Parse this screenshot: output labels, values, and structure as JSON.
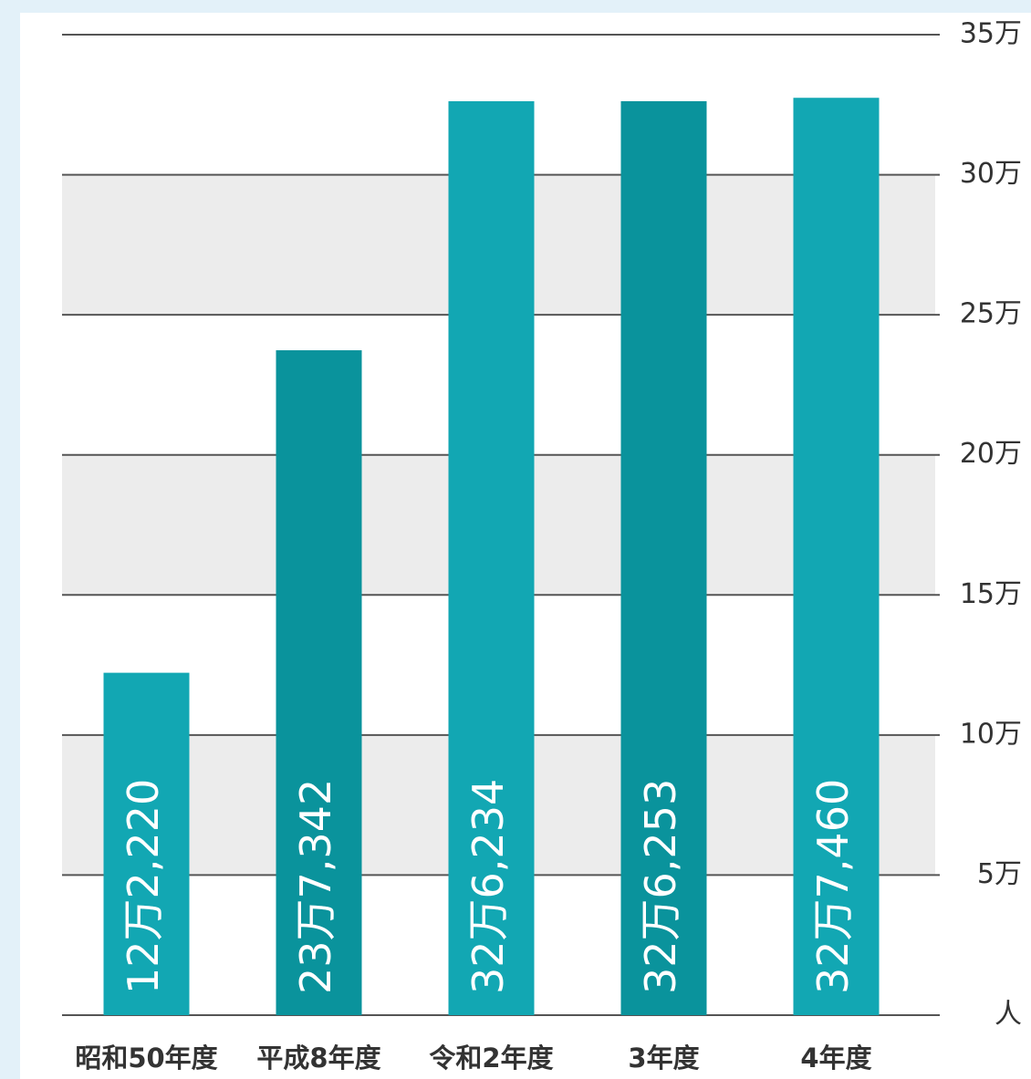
{
  "chart_data": {
    "type": "bar",
    "categories": [
      "昭和50年度",
      "平成8年度",
      "令和2年度",
      "3年度",
      "4年度"
    ],
    "values": [
      122220,
      237342,
      326234,
      326253,
      327460
    ],
    "value_labels": [
      "12万2,220",
      "23万7,342",
      "32万6,234",
      "32万6,253",
      "32万7,460"
    ],
    "colors": [
      "#12a7b3",
      "#0a939c",
      "#12a7b3",
      "#0a939c",
      "#12a7b3"
    ],
    "ylim": [
      0,
      350000
    ],
    "yticks": [
      {
        "value": 0,
        "label": "人"
      },
      {
        "value": 50000,
        "label": "5万"
      },
      {
        "value": 100000,
        "label": "10万"
      },
      {
        "value": 150000,
        "label": "15万"
      },
      {
        "value": 200000,
        "label": "20万"
      },
      {
        "value": 250000,
        "label": "25万"
      },
      {
        "value": 300000,
        "label": "30万"
      },
      {
        "value": 350000,
        "label": "35万"
      }
    ],
    "grid": true
  }
}
